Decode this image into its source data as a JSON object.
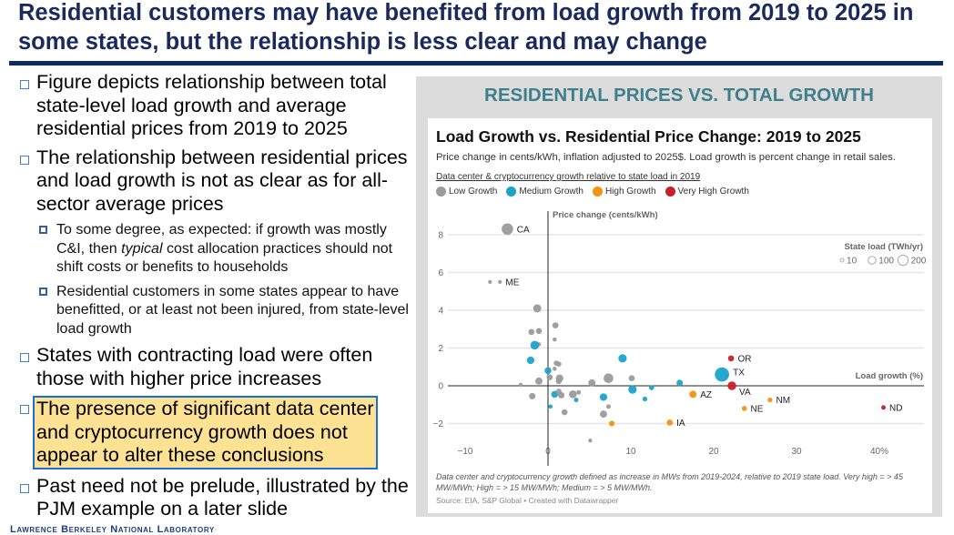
{
  "slide": {
    "title": "Residential customers may have benefited from load growth from 2019 to 2025 in some states, but the relationship is less clear and may change",
    "bullets": [
      "Figure depicts relationship between total state-level load growth and average residential prices from 2019 to 2025",
      "The relationship between residential prices and load growth is not as clear as for all-sector average prices"
    ],
    "sub_bullets": [
      {
        "pre": "To some degree, as expected: if growth was mostly C&I, then ",
        "em": "typical",
        "post": " cost allocation practices should not shift costs or benefits to households"
      },
      {
        "text": "Residential customers in some states appear to have benefitted, or at least not been injured, from state-level load growth"
      }
    ],
    "bullets2": [
      "States with contracting load were often those with higher price increases"
    ],
    "highlight": [
      "The presence of significant data center",
      "and cryptocurrency growth does not",
      "appear to alter these conclusions"
    ],
    "bullets3": [
      "Past need not be prelude, illustrated by the PJM example on a later slide"
    ],
    "footer": "Lawrence Berkeley National Laboratory",
    "panel_title": "RESIDENTIAL PRICES VS. TOTAL GROWTH"
  },
  "chart_data": {
    "type": "scatter",
    "title": "Load Growth vs. Residential Price Change: 2019 to 2025",
    "subtitle": "Price change in cents/kWh, inflation adjusted to 2025$. Load growth is percent change in retail sales.",
    "legend_title": "Data center & cryptocurrency growth relative to state load in 2019",
    "legend_placement": "top-left",
    "categories": [
      {
        "name": "Low Growth",
        "color": "#9b9b9b"
      },
      {
        "name": "Medium Growth",
        "color": "#1ba3c9"
      },
      {
        "name": "High Growth",
        "color": "#f59210"
      },
      {
        "name": "Very High Growth",
        "color": "#c8202a"
      }
    ],
    "size_legend": {
      "title": "State load (TWh/yr)",
      "values": [
        "10",
        "100",
        "200"
      ]
    },
    "xlabel": "Load growth (%)",
    "ylabel": "Price change (cents/kWh)",
    "xlim": [
      -12,
      45
    ],
    "ylim": [
      -3,
      9
    ],
    "xticks": [
      "−10",
      "0",
      "10",
      "20",
      "30",
      "40%"
    ],
    "xtick_values": [
      -10,
      0,
      10,
      20,
      30,
      40
    ],
    "yticks": [
      "−2",
      "0",
      "2",
      "4",
      "6",
      "8"
    ],
    "ytick_values": [
      -2,
      0,
      2,
      4,
      6,
      8
    ],
    "grid": true,
    "points": [
      {
        "x": -4.9,
        "y": 8.3,
        "c": 0,
        "load": 260,
        "label": "CA"
      },
      {
        "x": -5.8,
        "y": 5.5,
        "c": 0,
        "load": 12,
        "label": "ME"
      },
      {
        "x": -7.0,
        "y": 5.5,
        "c": 0,
        "load": 12
      },
      {
        "x": -1.3,
        "y": 4.1,
        "c": 0,
        "load": 110
      },
      {
        "x": 0.9,
        "y": 3.2,
        "c": 0,
        "load": 50
      },
      {
        "x": -2.0,
        "y": 2.85,
        "c": 0,
        "load": 50
      },
      {
        "x": -1.1,
        "y": 2.9,
        "c": 0,
        "load": 50
      },
      {
        "x": 0.8,
        "y": 2.45,
        "c": 0,
        "load": 15
      },
      {
        "x": -1.1,
        "y": 2.2,
        "c": 0,
        "load": 15
      },
      {
        "x": -1.6,
        "y": 2.15,
        "c": 1,
        "load": 130
      },
      {
        "x": -2.1,
        "y": 1.35,
        "c": 1,
        "load": 90
      },
      {
        "x": 0.0,
        "y": 0.8,
        "c": 1,
        "load": 70
      },
      {
        "x": 0.8,
        "y": 0.9,
        "c": 0,
        "load": 15
      },
      {
        "x": 1.0,
        "y": 1.2,
        "c": 0,
        "load": 30
      },
      {
        "x": 1.3,
        "y": 1.15,
        "c": 0,
        "load": 30
      },
      {
        "x": 0.2,
        "y": 0.45,
        "c": 0,
        "load": 50
      },
      {
        "x": 1.4,
        "y": 0.4,
        "c": 0,
        "load": 90
      },
      {
        "x": 1.3,
        "y": 0.25,
        "c": 0,
        "load": 50
      },
      {
        "x": -1.1,
        "y": 0.25,
        "c": 0,
        "load": 80
      },
      {
        "x": -3.3,
        "y": 0.05,
        "c": 0,
        "load": 15
      },
      {
        "x": -1.9,
        "y": -0.55,
        "c": 0,
        "load": 60
      },
      {
        "x": 0.8,
        "y": -0.45,
        "c": 1,
        "load": 70
      },
      {
        "x": 0.3,
        "y": -1.1,
        "c": 1,
        "load": 15
      },
      {
        "x": 1.3,
        "y": -0.3,
        "c": 0,
        "load": 40
      },
      {
        "x": 1.6,
        "y": -0.5,
        "c": 0,
        "load": 60
      },
      {
        "x": 2.0,
        "y": -1.4,
        "c": 0,
        "load": 50
      },
      {
        "x": 3.0,
        "y": -0.45,
        "c": 0,
        "load": 100
      },
      {
        "x": 3.7,
        "y": -0.35,
        "c": 0,
        "load": 20
      },
      {
        "x": 3.4,
        "y": -0.75,
        "c": 1,
        "load": 20
      },
      {
        "x": 5.3,
        "y": 0.15,
        "c": 0,
        "load": 80
      },
      {
        "x": 7.3,
        "y": 0.4,
        "c": 0,
        "load": 170
      },
      {
        "x": 5.1,
        "y": -2.9,
        "c": 0,
        "load": 12
      },
      {
        "x": 6.7,
        "y": -0.6,
        "c": 1,
        "load": 90
      },
      {
        "x": 7.3,
        "y": -1.1,
        "c": 0,
        "load": 20
      },
      {
        "x": 6.7,
        "y": -1.5,
        "c": 0,
        "load": 80
      },
      {
        "x": 7.7,
        "y": -2.0,
        "c": 2,
        "load": 40
      },
      {
        "x": 9.0,
        "y": 1.45,
        "c": 1,
        "load": 120
      },
      {
        "x": 10.1,
        "y": 0.4,
        "c": 0,
        "load": 50
      },
      {
        "x": 10.2,
        "y": -0.2,
        "c": 1,
        "load": 120
      },
      {
        "x": 12.5,
        "y": -0.1,
        "c": 1,
        "load": 30
      },
      {
        "x": 11.7,
        "y": -0.7,
        "c": 1,
        "load": 25
      },
      {
        "x": 15.9,
        "y": 0.15,
        "c": 1,
        "load": 60
      },
      {
        "x": 14.7,
        "y": -1.95,
        "c": 2,
        "load": 50,
        "label": "IA"
      },
      {
        "x": 17.5,
        "y": -0.45,
        "c": 2,
        "load": 80,
        "label": "AZ"
      },
      {
        "x": 21.0,
        "y": 0.6,
        "c": 1,
        "load": 430,
        "label": "TX"
      },
      {
        "x": 22.1,
        "y": 1.45,
        "c": 3,
        "load": 50,
        "label": "OR"
      },
      {
        "x": 22.2,
        "y": 0.0,
        "c": 3,
        "load": 130,
        "label": "VA"
      },
      {
        "x": 23.7,
        "y": -1.2,
        "c": 2,
        "load": 30,
        "label": "NE"
      },
      {
        "x": 26.8,
        "y": -0.75,
        "c": 2,
        "load": 25,
        "label": "NM"
      },
      {
        "x": 40.5,
        "y": -1.15,
        "c": 3,
        "load": 20,
        "label": "ND"
      }
    ],
    "note": "Data center and cryptocurrency growth defined as increase in MWs from 2019-2024, relative to 2019 state load. Very high = > 45 MW/MWh; High = > 15 MW/MWh; Medium = > 5 MW/MWh.",
    "source": "Source: EIA, S&P Global • Created with Datawrapper"
  }
}
